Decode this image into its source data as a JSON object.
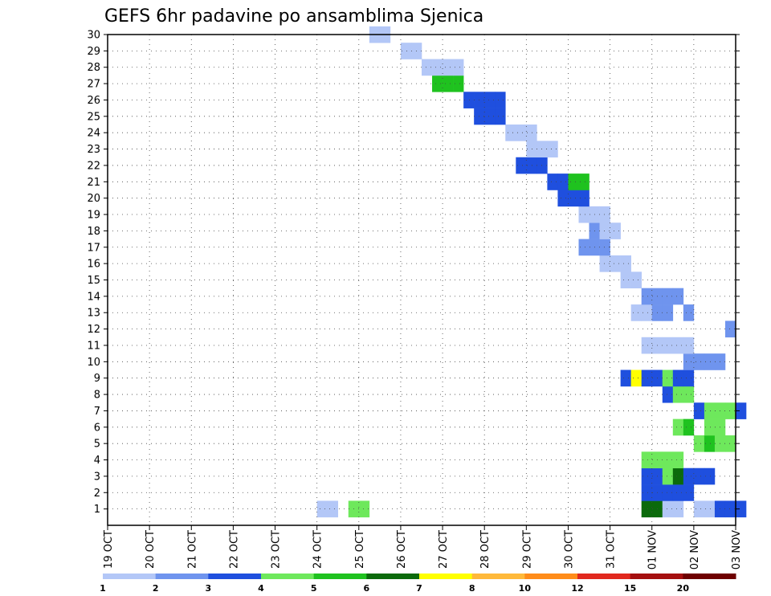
{
  "chart_data": {
    "type": "heatmap",
    "title": "GEFS 6hr padavine po ansamblima Sjenica",
    "x_tick_labels": [
      "19 OCT",
      "20 OCT",
      "21 OCT",
      "22 OCT",
      "23 OCT",
      "24 OCT",
      "25 OCT",
      "26 OCT",
      "27 OCT",
      "28 OCT",
      "29 OCT",
      "30 OCT",
      "31 OCT",
      "01 NOV",
      "02 NOV",
      "03 NOV"
    ],
    "y_tick_labels": [
      "1",
      "2",
      "3",
      "4",
      "5",
      "6",
      "7",
      "8",
      "9",
      "10",
      "11",
      "12",
      "13",
      "14",
      "15",
      "16",
      "17",
      "18",
      "19",
      "20",
      "21",
      "22",
      "23",
      "24",
      "25",
      "26",
      "27",
      "28",
      "29",
      "30"
    ],
    "x_range_days": [
      0,
      15
    ],
    "y_range_members": [
      0,
      30
    ],
    "time_step_hours": 6,
    "grid": true,
    "colorbar": {
      "labels": [
        "1",
        "2",
        "3",
        "4",
        "5",
        "6",
        "7",
        "8",
        "10",
        "12",
        "15",
        "20"
      ],
      "colors": [
        "#b3c7f7",
        "#6f94ee",
        "#1f4fde",
        "#6ee85c",
        "#1fc21f",
        "#0b6a0b",
        "#ffff00",
        "#ffb93a",
        "#ff8c1a",
        "#e1281e",
        "#a50f0f",
        "#6e0000"
      ]
    },
    "cell_color_keys": [
      "#b3c7f7",
      "#6f94ee",
      "#1f4fde",
      "#6ee85c",
      "#1fc21f",
      "#0b6a0b",
      "#ffff00",
      "#ffb93a",
      "#ff8c1a",
      "#e1281e",
      "#a50f0f",
      "#6e0000"
    ],
    "cells": [
      [
        12.75,
        1,
        5
      ],
      [
        13,
        1,
        5
      ],
      [
        13.25,
        1,
        0
      ],
      [
        13.5,
        1,
        0
      ],
      [
        14,
        1,
        0
      ],
      [
        14.25,
        1,
        0
      ],
      [
        14.5,
        1,
        2
      ],
      [
        14.75,
        1,
        2
      ],
      [
        15,
        1,
        2
      ],
      [
        12.75,
        2,
        2
      ],
      [
        13,
        2,
        2
      ],
      [
        13.25,
        2,
        2
      ],
      [
        13.5,
        2,
        2
      ],
      [
        13.75,
        2,
        2
      ],
      [
        12.75,
        3,
        2
      ],
      [
        13,
        3,
        2
      ],
      [
        13.25,
        3,
        3
      ],
      [
        13.5,
        3,
        5
      ],
      [
        13.75,
        3,
        2
      ],
      [
        14,
        3,
        2
      ],
      [
        14.25,
        3,
        2
      ],
      [
        12.75,
        4,
        3
      ],
      [
        13,
        4,
        3
      ],
      [
        13.25,
        4,
        3
      ],
      [
        13.5,
        4,
        3
      ],
      [
        14,
        5,
        3
      ],
      [
        14.25,
        5,
        4
      ],
      [
        14.5,
        5,
        3
      ],
      [
        14.75,
        5,
        3
      ],
      [
        13.5,
        6,
        3
      ],
      [
        13.75,
        6,
        4
      ],
      [
        14.25,
        6,
        3
      ],
      [
        14.5,
        6,
        3
      ],
      [
        14,
        7,
        2
      ],
      [
        14.25,
        7,
        3
      ],
      [
        14.5,
        7,
        3
      ],
      [
        14.75,
        7,
        3
      ],
      [
        15,
        7,
        2
      ],
      [
        13.25,
        8,
        2
      ],
      [
        13.5,
        8,
        3
      ],
      [
        13.75,
        8,
        3
      ],
      [
        12.25,
        9,
        2
      ],
      [
        12.5,
        9,
        6
      ],
      [
        12.75,
        9,
        2
      ],
      [
        13,
        9,
        2
      ],
      [
        13.25,
        9,
        3
      ],
      [
        13.5,
        9,
        2
      ],
      [
        13.75,
        9,
        2
      ],
      [
        13.75,
        10,
        1
      ],
      [
        14,
        10,
        1
      ],
      [
        14.25,
        10,
        1
      ],
      [
        14.5,
        10,
        1
      ],
      [
        12.75,
        11,
        0
      ],
      [
        13,
        11,
        0
      ],
      [
        13.25,
        11,
        0
      ],
      [
        13.5,
        11,
        0
      ],
      [
        13.75,
        11,
        0
      ],
      [
        14.75,
        12,
        1
      ],
      [
        12.5,
        13,
        0
      ],
      [
        12.75,
        13,
        0
      ],
      [
        13,
        13,
        1
      ],
      [
        13.25,
        13,
        1
      ],
      [
        13.75,
        13,
        1
      ],
      [
        12.75,
        14,
        1
      ],
      [
        13,
        14,
        1
      ],
      [
        13.25,
        14,
        1
      ],
      [
        13.5,
        14,
        1
      ],
      [
        12.25,
        15,
        0
      ],
      [
        12.5,
        15,
        0
      ],
      [
        11.75,
        16,
        0
      ],
      [
        12,
        16,
        0
      ],
      [
        12.25,
        16,
        0
      ],
      [
        11.25,
        17,
        1
      ],
      [
        11.5,
        17,
        1
      ],
      [
        11.75,
        17,
        1
      ],
      [
        11.5,
        18,
        1
      ],
      [
        11.75,
        18,
        0
      ],
      [
        12,
        18,
        0
      ],
      [
        11.25,
        19,
        0
      ],
      [
        11.5,
        19,
        0
      ],
      [
        11.75,
        19,
        0
      ],
      [
        10.75,
        20,
        2
      ],
      [
        11,
        20,
        2
      ],
      [
        11.25,
        20,
        2
      ],
      [
        10.5,
        21,
        2
      ],
      [
        10.75,
        21,
        2
      ],
      [
        11,
        21,
        4
      ],
      [
        11.25,
        21,
        4
      ],
      [
        9.75,
        22,
        2
      ],
      [
        10,
        22,
        2
      ],
      [
        10.25,
        22,
        2
      ],
      [
        10,
        23,
        0
      ],
      [
        10.25,
        23,
        0
      ],
      [
        10.5,
        23,
        0
      ],
      [
        9.5,
        24,
        0
      ],
      [
        9.75,
        24,
        0
      ],
      [
        10,
        24,
        0
      ],
      [
        8.75,
        25,
        2
      ],
      [
        9,
        25,
        2
      ],
      [
        9.25,
        25,
        2
      ],
      [
        8.5,
        26,
        2
      ],
      [
        8.75,
        26,
        2
      ],
      [
        9,
        26,
        2
      ],
      [
        9.25,
        26,
        2
      ],
      [
        7.75,
        27,
        4
      ],
      [
        8,
        27,
        4
      ],
      [
        8.25,
        27,
        4
      ],
      [
        7.5,
        28,
        0
      ],
      [
        7.75,
        28,
        0
      ],
      [
        8,
        28,
        0
      ],
      [
        8.25,
        28,
        0
      ],
      [
        7,
        29,
        0
      ],
      [
        7.25,
        29,
        0
      ],
      [
        6.25,
        30,
        0
      ],
      [
        6.5,
        30,
        0
      ],
      [
        5.75,
        1,
        3
      ],
      [
        6,
        1,
        3
      ],
      [
        5.25,
        1,
        0
      ],
      [
        5,
        1,
        0
      ]
    ]
  },
  "colors": {
    "frame": "#000000",
    "grid_dots": "#333333"
  }
}
